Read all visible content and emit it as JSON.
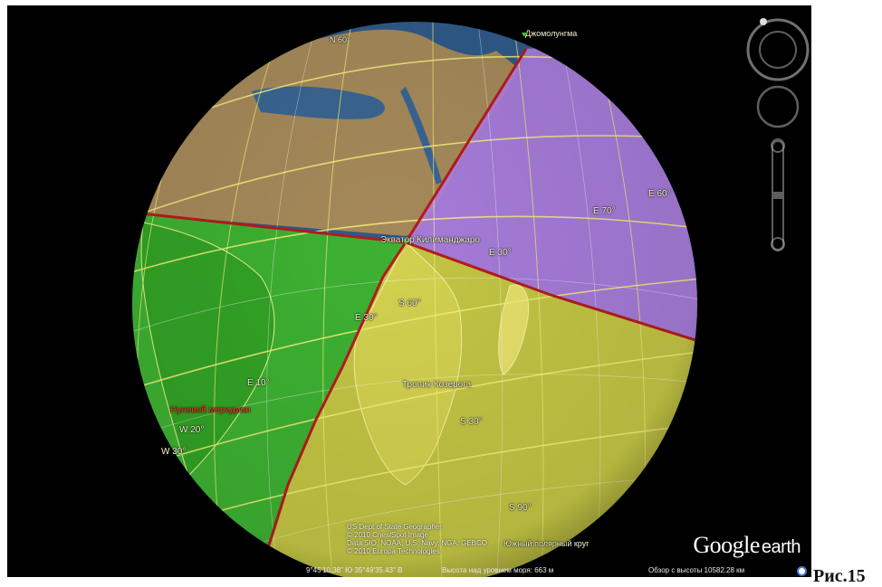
{
  "labels": {
    "djomolungma": "Джомолунгма",
    "equator": "Экватор",
    "kilimanjaro": "Килиманджаро",
    "tropic_capricorn": "Тропик Козерога",
    "prime_meridian": "Нулевой меридиан",
    "e30_a": "E 30°",
    "e30_b": "E 30°",
    "e60": "E 60°",
    "e70": "E 70°",
    "e10": "E 10°",
    "s60": "S 60°",
    "s30": "S 30°",
    "s90": "S 90°",
    "w20": "W 20°",
    "w30": "W 30°",
    "n60": "N 60°",
    "south_circle": "Южный полярный круг"
  },
  "status": {
    "coords": "9°45'10.38\" Ю  35°49'35.43\" В",
    "elevation": "Высота над уровнем моря:   663 м",
    "view": "Обзор с высоты 10582.28 км"
  },
  "credits": [
    "US Dept of State Geographer",
    "© 2010 Cnes/Spot Image",
    "Data SIO, NOAA, U.S. Navy, NGA, GEBCO",
    "© 2010 Europa Technologies"
  ],
  "logo": {
    "google": "Google",
    "earth": "earth"
  },
  "caption": "Рис.15",
  "colors": {
    "ocean": "#2f5a8a",
    "green_zone": "#3fb82a",
    "purple_zone": "#b27ee0",
    "yellow_zone": "#d8d43a",
    "grid": "#f4f07a",
    "boundary": "#b41c1c"
  }
}
